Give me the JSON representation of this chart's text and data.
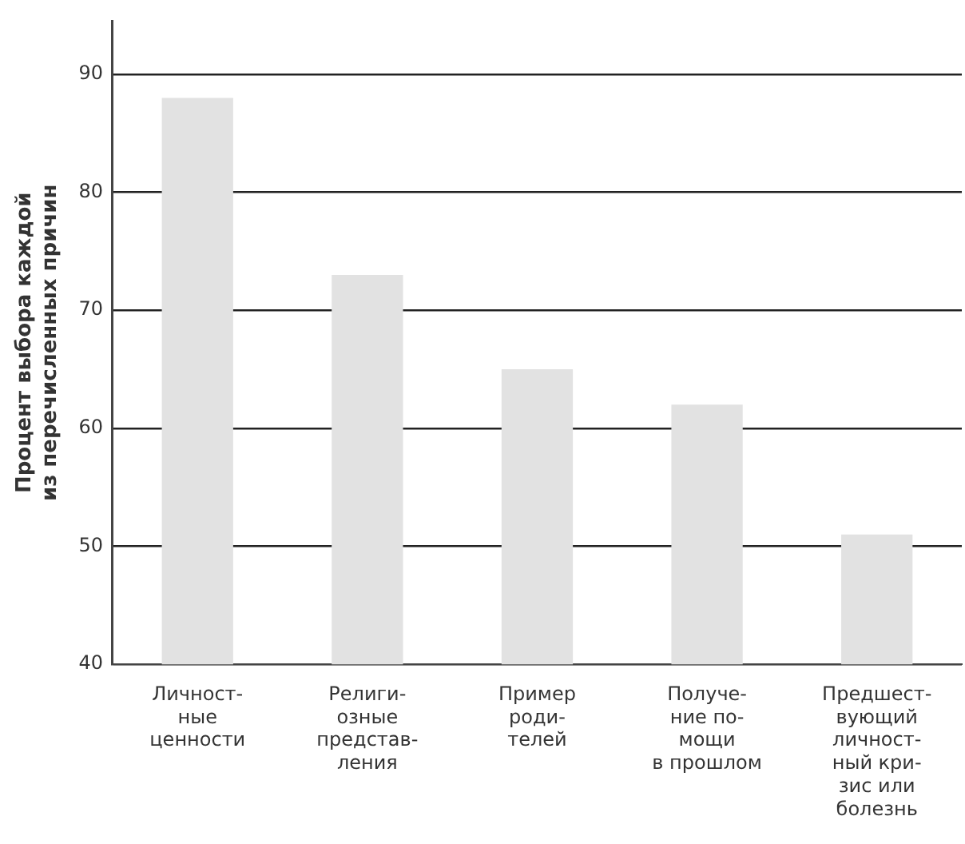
{
  "chart_data": {
    "type": "bar",
    "ylabel": "Процент выбора каждой\nиз перечисленных причин",
    "categories": [
      "Личност-\nные\nценности",
      "Религи-\nозные\nпредстав-\nления",
      "Пример\nроди-\nтелей",
      "Получе-\nние по-\nмощи\nв прошлом",
      "Предшест-\nвующий\nличност-\nный кри-\nзис или\nболезнь"
    ],
    "values": [
      88,
      73,
      65,
      62,
      51
    ],
    "color": "#e2e2e2",
    "ylim": [
      40,
      94.5
    ],
    "yticks": [
      40,
      50,
      60,
      70,
      80,
      90
    ],
    "grid": "y"
  }
}
